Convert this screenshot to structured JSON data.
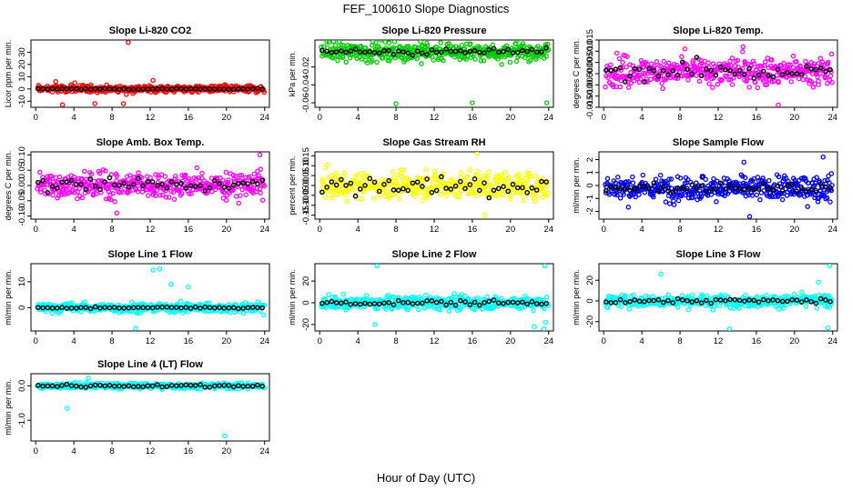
{
  "figure": {
    "title": "FEF_100610  Slope Diagnostics",
    "xlabel": "Hour of Day (UTC)"
  },
  "chart_data": [
    {
      "type": "scatter",
      "title": "Slope Li-820 CO2",
      "ylabel": "Licor ppm per min.",
      "xlim": [
        -0.5,
        24.5
      ],
      "ylim": [
        -15,
        40
      ],
      "xticks": [
        0,
        4,
        8,
        12,
        16,
        20,
        24
      ],
      "yticks": [
        -10,
        0,
        10,
        20,
        30
      ],
      "ytick_labels": [
        "-10",
        "0",
        "10",
        "20",
        "30"
      ],
      "color": "#ff0000",
      "noise": 2.5,
      "avg_noise": 0.4,
      "center": 0,
      "outliers": [
        [
          9.7,
          38
        ],
        [
          0.3,
          3
        ],
        [
          2.8,
          -13
        ],
        [
          6.2,
          -12
        ],
        [
          9.2,
          -12
        ],
        [
          2.1,
          6
        ],
        [
          4.1,
          5
        ],
        [
          12.3,
          7
        ]
      ],
      "series": [
        {
          "name": "",
          "color": "#ff0000",
          "points": 420
        },
        {
          "name": "",
          "color": "#000000",
          "points": 48
        }
      ]
    },
    {
      "type": "scatter",
      "title": "Slope Li-820 Pressure",
      "ylabel": "kPa per min.",
      "xlim": [
        -0.5,
        24.5
      ],
      "ylim": [
        -0.065,
        0.01
      ],
      "xticks": [
        0,
        4,
        8,
        12,
        16,
        20,
        24
      ],
      "yticks": [
        -0.06,
        -0.04,
        -0.02
      ],
      "ytick_labels": [
        "-0.06",
        "-0.04",
        "-0.02"
      ],
      "color": "#00cc00",
      "noise": 0.009,
      "avg_noise": 0.003,
      "center": -0.003,
      "outliers": [
        [
          8.0,
          -0.061
        ],
        [
          16.0,
          -0.06
        ],
        [
          23.8,
          -0.06
        ]
      ],
      "series": [
        {
          "name": "",
          "color": "#00cc00",
          "points": 420
        },
        {
          "name": "",
          "color": "#000000",
          "points": 48
        }
      ]
    },
    {
      "type": "scatter",
      "title": "Slope Li-820 Temp.",
      "ylabel": "degrees C per min.",
      "xlim": [
        -0.5,
        24.5
      ],
      "ylim": [
        -0.015,
        0.015
      ],
      "xticks": [
        0,
        4,
        8,
        12,
        16,
        20,
        24
      ],
      "yticks": [
        -0.015,
        -0.01,
        -0.005,
        0,
        0.005,
        0.01,
        0.015
      ],
      "ytick_labels": [
        "-0.015",
        "-0.010",
        "-0.005",
        "0.000",
        "0.005",
        "0.010",
        "0.015"
      ],
      "color": "#ff00ff",
      "noise": 0.0055,
      "avg_noise": 0.0035,
      "center": 0.001,
      "outliers": [
        [
          18.3,
          -0.014
        ],
        [
          14.6,
          0.012
        ],
        [
          8.5,
          0.011
        ]
      ],
      "series": [
        {
          "name": "",
          "color": "#ff00ff",
          "points": 420
        },
        {
          "name": "",
          "color": "#000000",
          "points": 48
        }
      ]
    },
    {
      "type": "scatter",
      "title": "Slope Amb. Box Temp.",
      "ylabel": "degrees C per min.",
      "xlim": [
        -0.5,
        24.5
      ],
      "ylim": [
        -0.11,
        0.11
      ],
      "xticks": [
        0,
        4,
        8,
        12,
        16,
        20,
        24
      ],
      "yticks": [
        -0.1,
        -0.05,
        0,
        0.05,
        0.1
      ],
      "ytick_labels": [
        "-0.10",
        "-0.05",
        "0.00",
        "0.05",
        "0.10"
      ],
      "color": "#ff00ff",
      "noise": 0.035,
      "avg_noise": 0.02,
      "center": 0.002,
      "outliers": [
        [
          23.5,
          0.1
        ],
        [
          8.5,
          -0.09
        ]
      ],
      "series": [
        {
          "name": "",
          "color": "#ff00ff",
          "points": 420
        },
        {
          "name": "",
          "color": "#000000",
          "points": 48
        }
      ]
    },
    {
      "type": "scatter",
      "title": "Slope Gas Stream RH",
      "ylabel": "percent per min.",
      "xlim": [
        -0.5,
        24.5
      ],
      "ylim": [
        -0.17,
        0.17
      ],
      "xticks": [
        0,
        4,
        8,
        12,
        16,
        20,
        24
      ],
      "yticks": [
        -0.15,
        -0.1,
        -0.05,
        0,
        0.05,
        0.1,
        0.15
      ],
      "ytick_labels": [
        "-0.15",
        "-0.10",
        "-0.05",
        "0.00",
        "0.05",
        "0.10",
        "0.15"
      ],
      "color": "#ffff00",
      "noise": 0.055,
      "avg_noise": 0.045,
      "center": 0,
      "outliers": [
        [
          16.5,
          0.16
        ],
        [
          17.3,
          -0.15
        ]
      ],
      "series": [
        {
          "name": "",
          "color": "#ffff00",
          "points": 420
        },
        {
          "name": "",
          "color": "#000000",
          "points": 48
        }
      ]
    },
    {
      "type": "scatter",
      "title": "Slope Sample Flow",
      "ylabel": "ml/min per min.",
      "xlim": [
        -0.5,
        24.5
      ],
      "ylim": [
        -2.6,
        2.6
      ],
      "xticks": [
        0,
        4,
        8,
        12,
        16,
        20,
        24
      ],
      "yticks": [
        -2,
        -1,
        0,
        1,
        2
      ],
      "ytick_labels": [
        "-2",
        "-1",
        "0",
        "1",
        "2"
      ],
      "color": "#0000ee",
      "noise": 0.8,
      "avg_noise": 0.3,
      "center": -0.2,
      "outliers": [
        [
          23.0,
          2.2
        ],
        [
          15.3,
          -2.4
        ],
        [
          14.7,
          1.8
        ]
      ],
      "series": [
        {
          "name": "",
          "color": "#0000ee",
          "points": 420
        },
        {
          "name": "",
          "color": "#000000",
          "points": 48
        }
      ]
    },
    {
      "type": "scatter",
      "title": "Slope Line 1 Flow",
      "ylabel": "ml/min per min.",
      "xlim": [
        -0.5,
        24.5
      ],
      "ylim": [
        -9,
        17
      ],
      "xticks": [
        0,
        4,
        8,
        12,
        16,
        20,
        24
      ],
      "yticks": [
        0,
        10
      ],
      "ytick_labels": [
        "0",
        "10"
      ],
      "color": "#00ffff",
      "noise": 1.6,
      "avg_noise": 0.3,
      "center": 0,
      "outliers": [
        [
          13.0,
          15
        ],
        [
          12.3,
          14.5
        ],
        [
          14.2,
          9
        ],
        [
          10.5,
          -8
        ],
        [
          16.0,
          8
        ]
      ],
      "series": [
        {
          "name": "",
          "color": "#00ffff",
          "points": 420
        },
        {
          "name": "",
          "color": "#000000",
          "points": 48
        }
      ]
    },
    {
      "type": "scatter",
      "title": "Slope Line 2 Flow",
      "ylabel": "ml/min per min.",
      "xlim": [
        -0.5,
        24.5
      ],
      "ylim": [
        -26,
        36
      ],
      "xticks": [
        0,
        4,
        8,
        12,
        16,
        20,
        24
      ],
      "yticks": [
        -20,
        0,
        20
      ],
      "ytick_labels": [
        "-20",
        "0",
        "20"
      ],
      "color": "#00ffff",
      "noise": 5,
      "avg_noise": 2,
      "center": 0,
      "outliers": [
        [
          6.0,
          34
        ],
        [
          23.6,
          34
        ],
        [
          23.5,
          -24
        ],
        [
          23.7,
          -18
        ],
        [
          5.8,
          -20
        ],
        [
          22.5,
          -22
        ]
      ],
      "series": [
        {
          "name": "",
          "color": "#00ffff",
          "points": 420
        },
        {
          "name": "",
          "color": "#000000",
          "points": 48
        }
      ]
    },
    {
      "type": "scatter",
      "title": "Slope Line 3 Flow",
      "ylabel": "ml/min per min.",
      "xlim": [
        -0.5,
        24.5
      ],
      "ylim": [
        -29,
        36
      ],
      "xticks": [
        0,
        4,
        8,
        12,
        16,
        20,
        24
      ],
      "yticks": [
        -20,
        0,
        20
      ],
      "ytick_labels": [
        "-20",
        "0",
        "20"
      ],
      "color": "#00ffff",
      "noise": 5,
      "avg_noise": 2,
      "center": 0,
      "outliers": [
        [
          23.7,
          34
        ],
        [
          6.0,
          26
        ],
        [
          13.2,
          -27
        ],
        [
          23.5,
          -26
        ],
        [
          22.5,
          18
        ]
      ],
      "series": [
        {
          "name": "",
          "color": "#00ffff",
          "points": 420
        },
        {
          "name": "",
          "color": "#000000",
          "points": 48
        }
      ]
    },
    {
      "type": "scatter",
      "title": "Slope Line 4 (LT) Flow",
      "ylabel": "ml/min per min.",
      "xlim": [
        -0.5,
        24.5
      ],
      "ylim": [
        -1.6,
        0.35
      ],
      "xticks": [
        0,
        4,
        8,
        12,
        16,
        20,
        24
      ],
      "yticks": [
        -1,
        0
      ],
      "ytick_labels": [
        "-1.0",
        "0.0"
      ],
      "color": "#00ffff",
      "noise": 0.07,
      "avg_noise": 0.04,
      "center": 0,
      "outliers": [
        [
          3.3,
          -0.65
        ],
        [
          19.8,
          -1.45
        ],
        [
          5.5,
          0.22
        ]
      ],
      "series": [
        {
          "name": "",
          "color": "#00ffff",
          "points": 420
        },
        {
          "name": "",
          "color": "#000000",
          "points": 48
        }
      ]
    }
  ]
}
